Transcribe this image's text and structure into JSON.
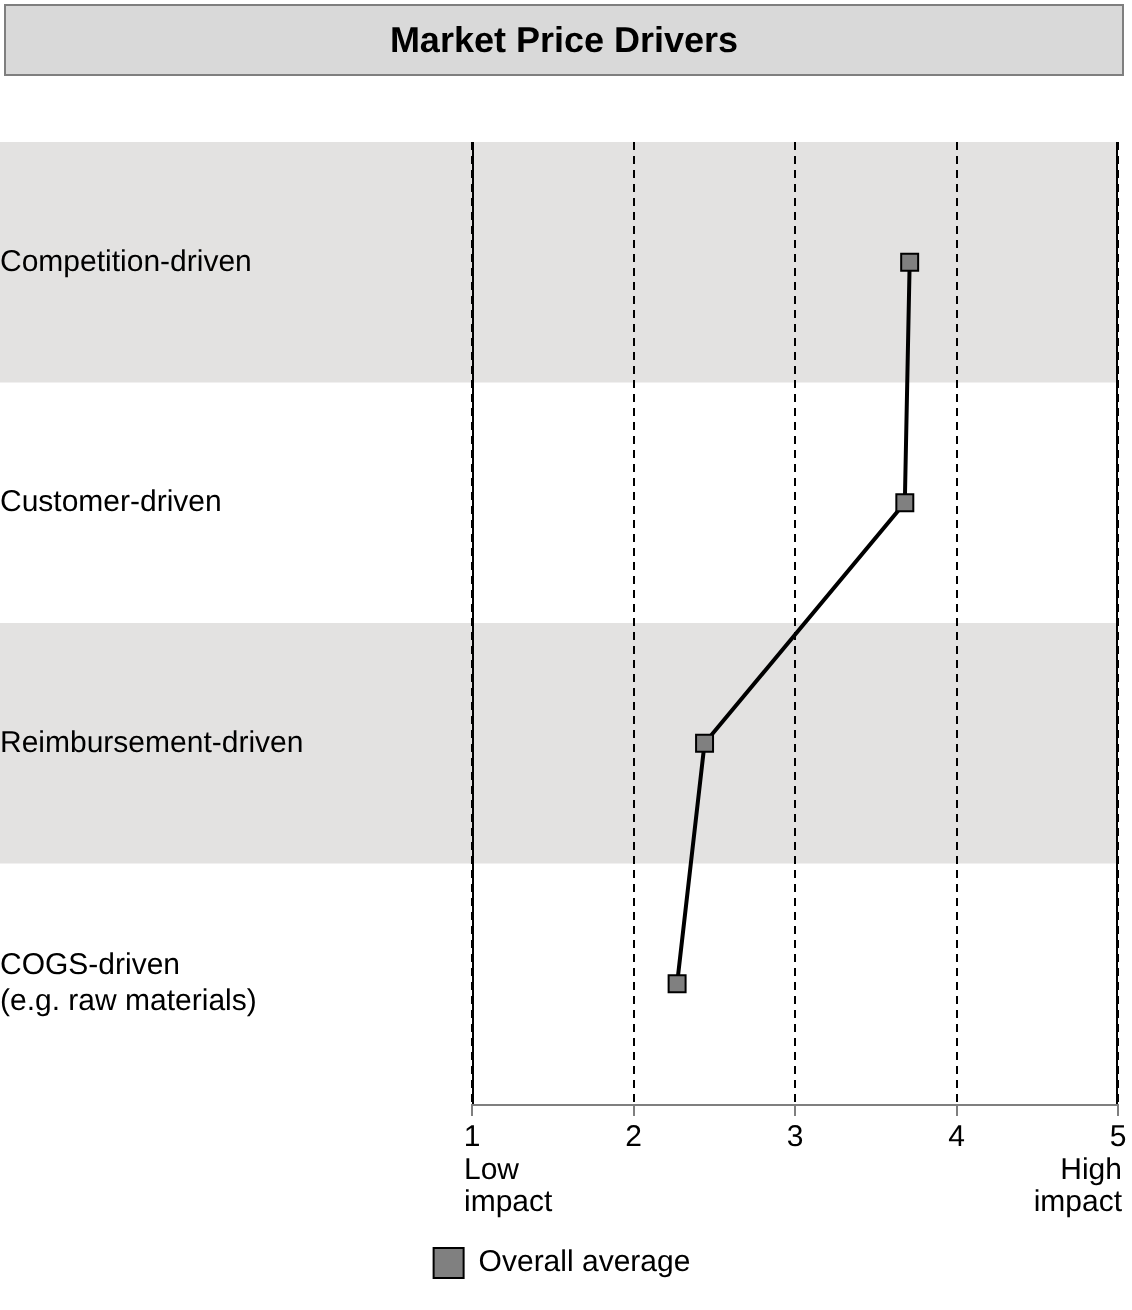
{
  "chart_data": {
    "type": "line",
    "title": "Market Price Drivers",
    "categories": [
      "Competition-driven",
      "Customer-driven",
      "Reimbursement-driven",
      "COGS-driven (e.g. raw materials)"
    ],
    "series": [
      {
        "name": "Overall average",
        "color": "#808080",
        "values": [
          3.71,
          3.68,
          2.44,
          2.27
        ]
      }
    ],
    "orientation": "horizontal",
    "xlim": [
      1,
      5
    ],
    "xticks": [
      1,
      2,
      3,
      4,
      5
    ],
    "annotations": [
      "Low impact",
      "High impact"
    ],
    "grid": "x",
    "legend": "bottom",
    "marker": "square",
    "line_style": "solid"
  }
}
